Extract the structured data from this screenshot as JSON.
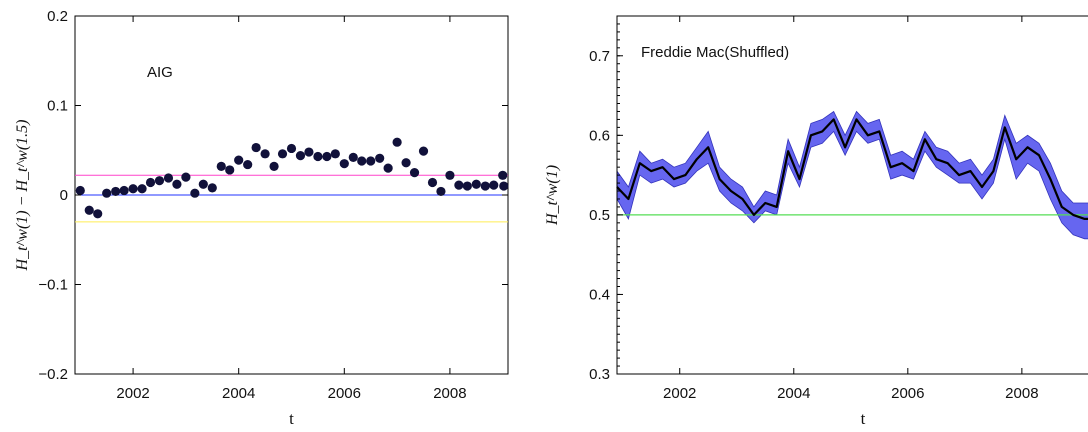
{
  "chart_data": [
    {
      "type": "scatter",
      "annotation": "AIG",
      "xlabel": "t",
      "ylabel": "H_t^w(1) − H_t^w(1.5)",
      "xlim": [
        2000.9,
        2009.1
      ],
      "ylim": [
        -0.2,
        0.2
      ],
      "xticks": [
        2002,
        2004,
        2006,
        2008
      ],
      "yticks": [
        {
          "value": -0.2,
          "label": "−0.2"
        },
        {
          "value": -0.1,
          "label": "−0.1"
        },
        {
          "value": 0.0,
          "label": "0"
        },
        {
          "value": 0.1,
          "label": "0.1"
        },
        {
          "value": 0.2,
          "label": "0.2"
        }
      ],
      "reference_lines": [
        {
          "y": 0.022,
          "color": "#ff44cc"
        },
        {
          "y": 0.0,
          "color": "#2233ff"
        },
        {
          "y": -0.03,
          "color": "#ffee55"
        }
      ],
      "marker_color": "#11113a",
      "points": {
        "x": [
          2001.0,
          2001.17,
          2001.33,
          2001.5,
          2001.67,
          2001.83,
          2002.0,
          2002.17,
          2002.33,
          2002.5,
          2002.67,
          2002.83,
          2003.0,
          2003.17,
          2003.33,
          2003.5,
          2003.67,
          2003.83,
          2004.0,
          2004.17,
          2004.33,
          2004.5,
          2004.67,
          2004.83,
          2005.0,
          2005.17,
          2005.33,
          2005.5,
          2005.67,
          2005.83,
          2006.0,
          2006.17,
          2006.33,
          2006.5,
          2006.67,
          2006.83,
          2007.0,
          2007.17,
          2007.33,
          2007.5,
          2007.67,
          2007.83,
          2008.0,
          2008.17,
          2008.33,
          2008.5,
          2008.67,
          2008.83,
          2009.0,
          2009.02
        ],
        "y": [
          0.005,
          -0.017,
          -0.021,
          0.002,
          0.004,
          0.005,
          0.007,
          0.007,
          0.014,
          0.016,
          0.019,
          0.012,
          0.02,
          0.002,
          0.012,
          0.008,
          0.032,
          0.028,
          0.039,
          0.034,
          0.053,
          0.046,
          0.032,
          0.046,
          0.052,
          0.044,
          0.048,
          0.043,
          0.043,
          0.046,
          0.035,
          0.042,
          0.038,
          0.038,
          0.041,
          0.03,
          0.059,
          0.036,
          0.025,
          0.049,
          0.014,
          0.004,
          0.022,
          0.011,
          0.01,
          0.012,
          0.01,
          0.011,
          0.022,
          0.01
        ]
      }
    },
    {
      "type": "line",
      "annotation": "Freddie Mac(Shuffled)",
      "xlabel": "t",
      "ylabel": "H_t^w(1)",
      "xlim": [
        2000.9,
        2009.3
      ],
      "ylim": [
        0.3,
        0.75
      ],
      "xticks": [
        2002,
        2004,
        2006,
        2008
      ],
      "yticks": [
        {
          "value": 0.3,
          "label": "0.3"
        },
        {
          "value": 0.4,
          "label": "0.4"
        },
        {
          "value": 0.5,
          "label": "0.5"
        },
        {
          "value": 0.6,
          "label": "0.6"
        },
        {
          "value": 0.7,
          "label": "0.7"
        }
      ],
      "reference_lines": [
        {
          "y": 0.5,
          "color": "#55dd55"
        }
      ],
      "line_color": "#000000",
      "band_color": "#5555ee",
      "series": {
        "x": [
          2000.9,
          2001.1,
          2001.3,
          2001.5,
          2001.7,
          2001.9,
          2002.1,
          2002.3,
          2002.5,
          2002.7,
          2002.9,
          2003.1,
          2003.3,
          2003.5,
          2003.7,
          2003.9,
          2004.1,
          2004.3,
          2004.5,
          2004.7,
          2004.9,
          2005.1,
          2005.3,
          2005.5,
          2005.7,
          2005.9,
          2006.1,
          2006.3,
          2006.5,
          2006.7,
          2006.9,
          2007.1,
          2007.3,
          2007.5,
          2007.7,
          2007.9,
          2008.1,
          2008.3,
          2008.5,
          2008.7,
          2008.9,
          2009.1,
          2009.3
        ],
        "mean": [
          0.535,
          0.52,
          0.565,
          0.555,
          0.56,
          0.545,
          0.55,
          0.57,
          0.585,
          0.545,
          0.53,
          0.52,
          0.5,
          0.515,
          0.51,
          0.58,
          0.545,
          0.6,
          0.605,
          0.62,
          0.585,
          0.62,
          0.6,
          0.605,
          0.56,
          0.565,
          0.555,
          0.595,
          0.57,
          0.565,
          0.55,
          0.555,
          0.535,
          0.555,
          0.61,
          0.57,
          0.585,
          0.575,
          0.545,
          0.51,
          0.5,
          0.495,
          0.495
        ],
        "lower": [
          0.52,
          0.495,
          0.55,
          0.54,
          0.545,
          0.535,
          0.54,
          0.555,
          0.565,
          0.53,
          0.515,
          0.505,
          0.49,
          0.505,
          0.5,
          0.565,
          0.535,
          0.585,
          0.59,
          0.605,
          0.575,
          0.605,
          0.59,
          0.595,
          0.545,
          0.55,
          0.545,
          0.58,
          0.56,
          0.55,
          0.54,
          0.54,
          0.52,
          0.54,
          0.595,
          0.545,
          0.565,
          0.555,
          0.52,
          0.49,
          0.475,
          0.47,
          0.47
        ],
        "upper": [
          0.555,
          0.535,
          0.58,
          0.565,
          0.57,
          0.56,
          0.565,
          0.585,
          0.605,
          0.56,
          0.545,
          0.535,
          0.51,
          0.53,
          0.525,
          0.595,
          0.56,
          0.615,
          0.62,
          0.63,
          0.6,
          0.63,
          0.615,
          0.62,
          0.575,
          0.58,
          0.57,
          0.605,
          0.585,
          0.58,
          0.565,
          0.57,
          0.55,
          0.57,
          0.625,
          0.59,
          0.6,
          0.59,
          0.565,
          0.53,
          0.515,
          0.515,
          0.515
        ]
      }
    }
  ]
}
